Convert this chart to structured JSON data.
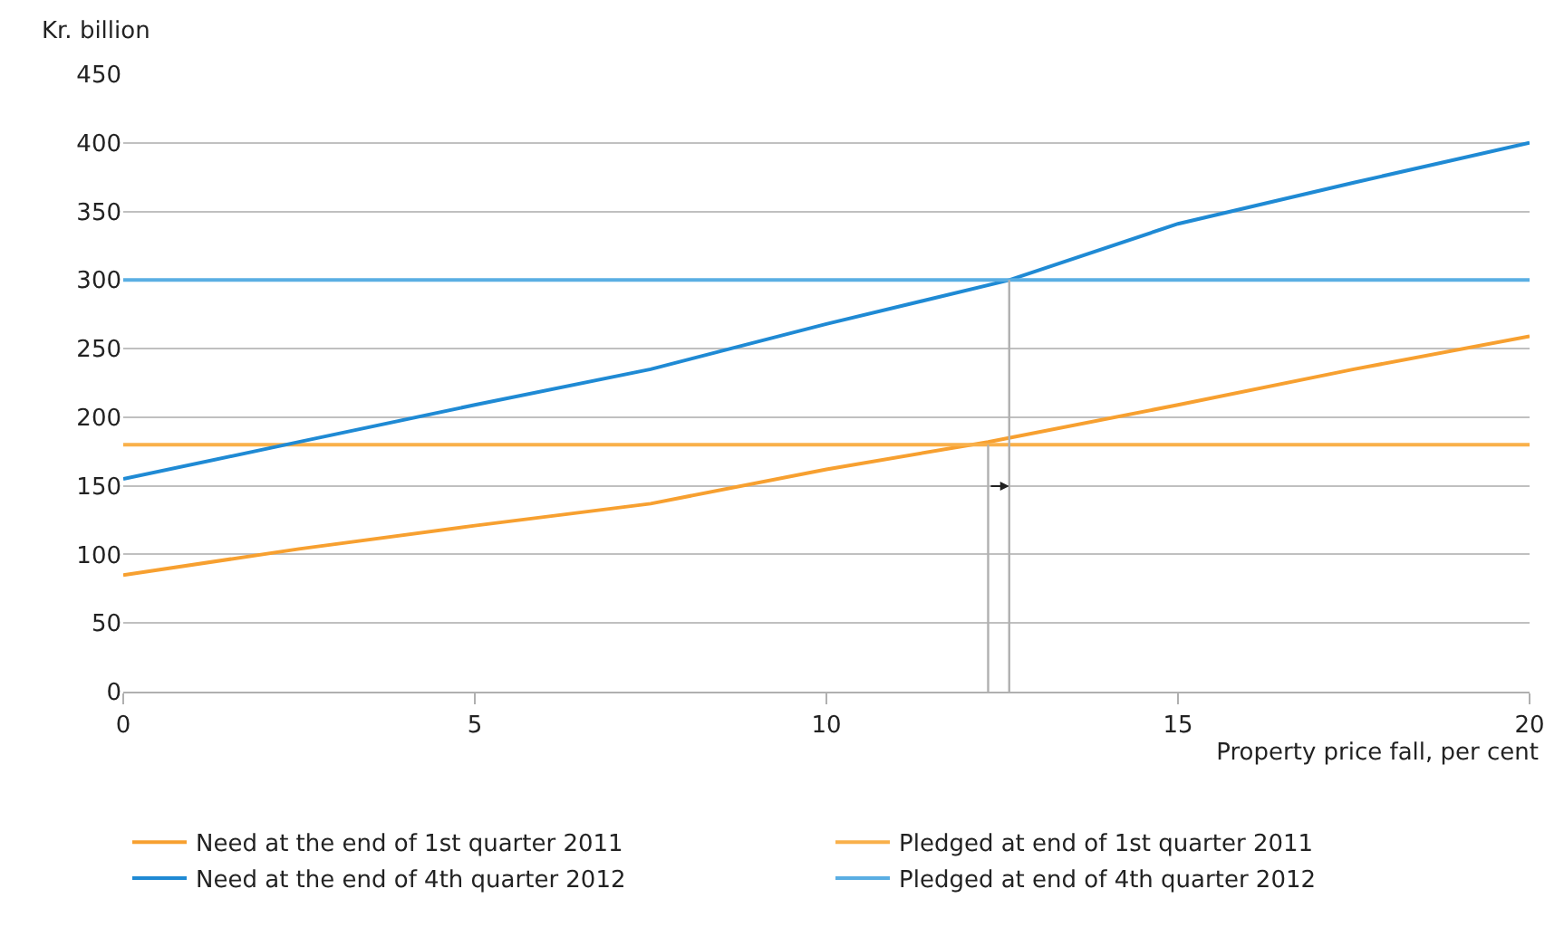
{
  "chart_data": {
    "type": "line",
    "ylabel": "Kr. billion",
    "xlabel": "Property price fall, per cent",
    "series": [
      {
        "name": "Need at the end of 1st quarter 2011",
        "color": "#f7a030",
        "x": [
          0,
          2.5,
          5,
          7.5,
          10,
          12.3,
          15,
          17.5,
          20
        ],
        "values": [
          85,
          104,
          121,
          137,
          162,
          182,
          209,
          235,
          259
        ]
      },
      {
        "name": "Pledged at end of 1st quarter 2011",
        "color": "#f9b04a",
        "x": [
          0,
          20
        ],
        "values": [
          180,
          180
        ]
      },
      {
        "name": "Need at the end of 4th quarter 2012",
        "color": "#1f8ad4",
        "x": [
          0,
          2.5,
          5,
          7.5,
          10,
          12.6,
          15,
          17.5,
          20
        ],
        "values": [
          155,
          182,
          209,
          235,
          268,
          300,
          341,
          371,
          400
        ]
      },
      {
        "name": "Pledged at end of 4th quarter 2012",
        "color": "#5aaee3",
        "x": [
          0,
          20
        ],
        "values": [
          300,
          300
        ]
      },
      {
        "color": "#b0b0b0",
        "x": [
          12.3,
          12.3
        ],
        "values": [
          0,
          180
        ]
      },
      {
        "color": "#b0b0b0",
        "x": [
          12.6,
          12.6
        ],
        "values": [
          0,
          300
        ]
      }
    ],
    "xlim": [
      0,
      20
    ],
    "xticks": [
      0,
      5,
      10,
      15,
      20
    ],
    "ylim": [
      0,
      450
    ],
    "yticks": [
      0,
      50,
      100,
      150,
      200,
      250,
      300,
      350,
      400,
      450
    ],
    "grid": "y",
    "legend": "bottom",
    "marker": "none",
    "line_style": "solid"
  }
}
